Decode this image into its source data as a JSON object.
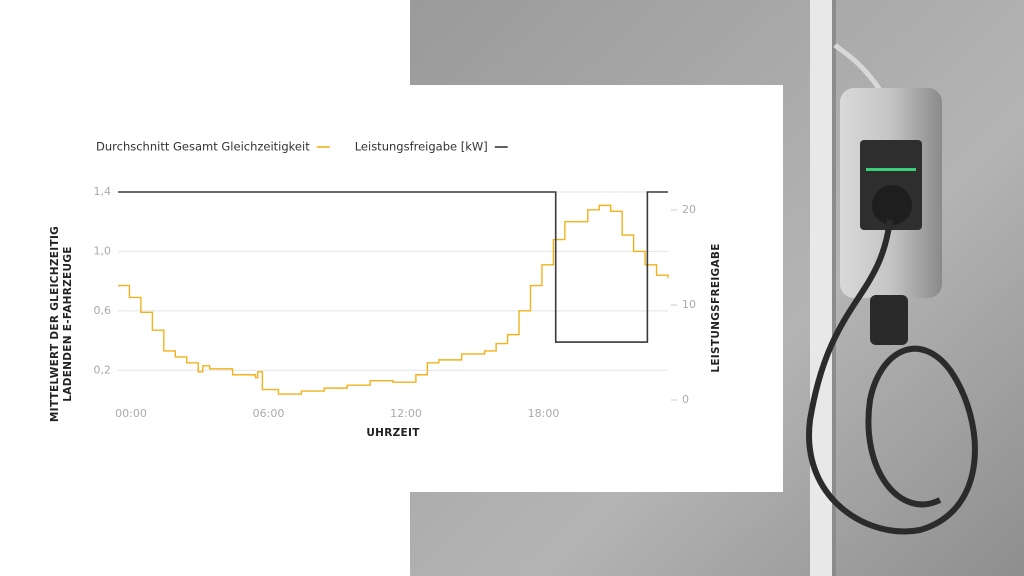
{
  "chart_data": {
    "type": "line",
    "ylabel": [
      "MITTELWERT DER GLEICHZEITIG",
      "LADENDEN E-FAHRZEUGE"
    ],
    "xlabel": "UHRZEIT",
    "y2label": "LEISTUNGSFREIGABE",
    "step": true,
    "xlim": [
      0,
      24
    ],
    "xticks": [
      {
        "value": 0,
        "label": "00:00"
      },
      {
        "value": 6,
        "label": "06:00"
      },
      {
        "value": 12,
        "label": "12:00"
      },
      {
        "value": 18,
        "label": "18:00"
      }
    ],
    "ylim": [
      0,
      1.4
    ],
    "yticks": [
      {
        "value": 0.2,
        "label": "0,2"
      },
      {
        "value": 0.6,
        "label": "0,6"
      },
      {
        "value": 1.0,
        "label": "1,0"
      },
      {
        "value": 1.4,
        "label": "1,4"
      }
    ],
    "y2lim": [
      0,
      21.9
    ],
    "y2ticks": [
      0,
      10,
      20
    ],
    "grid": true,
    "series": [
      {
        "name": "Durchschnitt Gesamt Gleichzeitigkeit",
        "color": "#f2b21c",
        "x": [
          0,
          0.5,
          1,
          1.5,
          2,
          2.5,
          3,
          3.5,
          3.7,
          4,
          5,
          6,
          6.1,
          6.3,
          7,
          8,
          9,
          10,
          11,
          12,
          13,
          13.5,
          14,
          15,
          16,
          16.5,
          17,
          17.5,
          18,
          18.5,
          19,
          19.5,
          20,
          20.5,
          21,
          21.5,
          22,
          22.5,
          23,
          23.5,
          24
        ],
        "values": [
          0.77,
          0.69,
          0.59,
          0.47,
          0.33,
          0.29,
          0.25,
          0.19,
          0.23,
          0.21,
          0.17,
          0.15,
          0.19,
          0.07,
          0.04,
          0.06,
          0.08,
          0.1,
          0.13,
          0.12,
          0.17,
          0.25,
          0.27,
          0.31,
          0.33,
          0.38,
          0.44,
          0.6,
          0.77,
          0.91,
          1.08,
          1.2,
          1.2,
          1.28,
          1.31,
          1.27,
          1.11,
          1.0,
          0.91,
          0.84,
          0.82
        ]
      },
      {
        "name": "Leistungsfreigabe [kW]",
        "color": "#3a3a3a",
        "axis": "y2",
        "x": [
          0,
          19.1,
          19.1,
          23.1,
          23.1,
          24
        ],
        "values": [
          21.9,
          21.9,
          6.1,
          6.1,
          21.9,
          21.9
        ]
      }
    ]
  }
}
